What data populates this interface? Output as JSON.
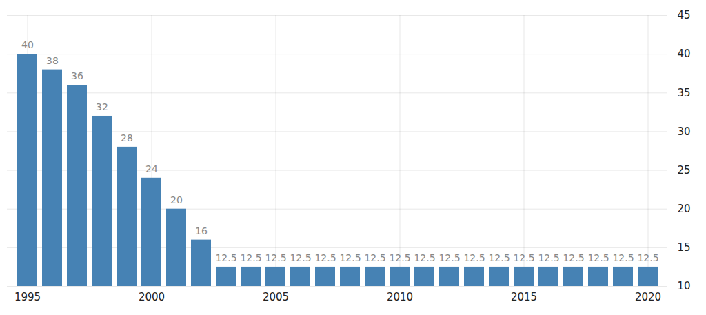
{
  "chart_data": {
    "type": "bar",
    "categories": [
      "1995",
      null,
      null,
      null,
      null,
      "2000",
      null,
      null,
      null,
      null,
      "2005",
      null,
      null,
      null,
      null,
      "2010",
      null,
      null,
      null,
      null,
      "2015",
      null,
      null,
      null,
      null,
      "2020"
    ],
    "values": [
      40,
      38,
      36,
      32,
      28,
      24,
      20,
      16,
      12.5,
      12.5,
      12.5,
      12.5,
      12.5,
      12.5,
      12.5,
      12.5,
      12.5,
      12.5,
      12.5,
      12.5,
      12.5,
      12.5,
      12.5,
      12.5,
      12.5,
      12.5
    ],
    "color": "#4682b4",
    "ylim": [
      10,
      45
    ],
    "yticks": [
      10,
      15,
      20,
      25,
      30,
      35,
      40,
      45
    ],
    "grid": true,
    "data_labels": true
  }
}
